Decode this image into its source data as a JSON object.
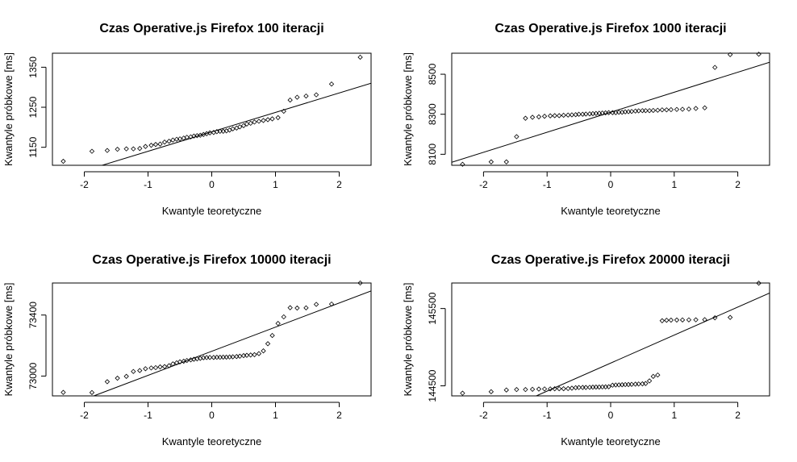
{
  "chart_data": [
    {
      "type": "scatter",
      "title": "Czas Operative.js Firefox  100 iteracji",
      "xlabel": "Kwantyle teoretyczne",
      "ylabel": "Kwantyle próbkowe [ms]",
      "xlim": [
        -2.5,
        2.5
      ],
      "ylim": [
        1105,
        1385
      ],
      "xticks": [
        -2,
        -1,
        0,
        1,
        2
      ],
      "yticks": [
        1150,
        1250,
        1350
      ],
      "grid": false,
      "points": {
        "x": [
          -2.33,
          -1.88,
          -1.64,
          -1.48,
          -1.34,
          -1.23,
          -1.13,
          -1.04,
          -0.95,
          -0.88,
          -0.81,
          -0.74,
          -0.67,
          -0.61,
          -0.55,
          -0.5,
          -0.44,
          -0.39,
          -0.33,
          -0.28,
          -0.23,
          -0.18,
          -0.13,
          -0.08,
          -0.03,
          0.03,
          0.08,
          0.13,
          0.18,
          0.23,
          0.28,
          0.33,
          0.39,
          0.44,
          0.5,
          0.55,
          0.61,
          0.67,
          0.74,
          0.81,
          0.88,
          0.95,
          1.04,
          1.13,
          1.23,
          1.34,
          1.48,
          1.64,
          1.88,
          2.33
        ],
        "y": [
          1115,
          1140,
          1142,
          1145,
          1146,
          1146,
          1147,
          1152,
          1155,
          1157,
          1158,
          1163,
          1165,
          1168,
          1170,
          1171,
          1173,
          1175,
          1176,
          1178,
          1179,
          1180,
          1182,
          1184,
          1186,
          1187,
          1189,
          1190,
          1190,
          1191,
          1193,
          1196,
          1198,
          1201,
          1204,
          1208,
          1210,
          1213,
          1215,
          1217,
          1219,
          1221,
          1224,
          1240,
          1268,
          1275,
          1278,
          1281,
          1308,
          1375
        ]
      },
      "qqline": {
        "x": [
          -1.72,
          2.5
        ],
        "y": [
          1105,
          1310
        ]
      }
    },
    {
      "type": "scatter",
      "title": "Czas Operative.js Firefox  1000 iteracji",
      "xlabel": "Kwantyle teoretyczne",
      "ylabel": "Kwantyle próbkowe [ms]",
      "xlim": [
        -2.5,
        2.5
      ],
      "ylim": [
        8045,
        8605
      ],
      "xticks": [
        -2,
        -1,
        0,
        1,
        2
      ],
      "yticks": [
        8100,
        8300,
        8500
      ],
      "grid": false,
      "points": {
        "x": [
          -2.33,
          -1.88,
          -1.64,
          -1.48,
          -1.34,
          -1.23,
          -1.13,
          -1.04,
          -0.95,
          -0.88,
          -0.81,
          -0.74,
          -0.67,
          -0.61,
          -0.55,
          -0.5,
          -0.44,
          -0.39,
          -0.33,
          -0.28,
          -0.23,
          -0.18,
          -0.13,
          -0.08,
          -0.03,
          0.03,
          0.08,
          0.13,
          0.18,
          0.23,
          0.28,
          0.33,
          0.39,
          0.44,
          0.5,
          0.55,
          0.61,
          0.67,
          0.74,
          0.81,
          0.88,
          0.95,
          1.04,
          1.13,
          1.23,
          1.34,
          1.48,
          1.64,
          1.88,
          2.33
        ],
        "y": [
          8050,
          8062,
          8062,
          8188,
          8280,
          8285,
          8287,
          8290,
          8292,
          8293,
          8293,
          8295,
          8296,
          8297,
          8298,
          8300,
          8300,
          8301,
          8302,
          8303,
          8304,
          8305,
          8306,
          8307,
          8308,
          8308,
          8308,
          8310,
          8310,
          8312,
          8313,
          8314,
          8316,
          8317,
          8318,
          8318,
          8318,
          8319,
          8320,
          8322,
          8322,
          8323,
          8324,
          8325,
          8326,
          8329,
          8332,
          8534,
          8598,
          8600
        ],
        "size": 50
      },
      "qqline": {
        "x": [
          -2.5,
          2.5
        ],
        "y": [
          8060,
          8560
        ]
      }
    },
    {
      "type": "scatter",
      "title": "Czas Operative.js Firefox  10000 iteracji",
      "xlabel": "Kwantyle teoretyczne",
      "ylabel": "Kwantyle próbkowe [ms]",
      "xlim": [
        -2.5,
        2.5
      ],
      "ylim": [
        2870,
        3610
      ],
      "xticks": [
        -2,
        -1,
        0,
        1,
        2
      ],
      "yticks": [
        73000,
        73400
      ],
      "ytick_offset": 70000,
      "grid": false,
      "points": {
        "x": [
          -2.33,
          -1.88,
          -1.64,
          -1.48,
          -1.34,
          -1.23,
          -1.13,
          -1.04,
          -0.95,
          -0.88,
          -0.81,
          -0.74,
          -0.67,
          -0.61,
          -0.55,
          -0.5,
          -0.44,
          -0.39,
          -0.33,
          -0.28,
          -0.23,
          -0.18,
          -0.13,
          -0.08,
          -0.03,
          0.03,
          0.08,
          0.13,
          0.18,
          0.23,
          0.28,
          0.33,
          0.39,
          0.44,
          0.5,
          0.55,
          0.61,
          0.67,
          0.74,
          0.81,
          0.88,
          0.95,
          1.04,
          1.13,
          1.23,
          1.34,
          1.48,
          1.64,
          1.88,
          2.33
        ],
        "y": [
          2893,
          2892,
          2963,
          2986,
          2998,
          3030,
          3036,
          3048,
          3053,
          3055,
          3060,
          3062,
          3068,
          3080,
          3087,
          3093,
          3097,
          3102,
          3106,
          3110,
          3113,
          3116,
          3120,
          3121,
          3122,
          3122,
          3123,
          3123,
          3124,
          3124,
          3125,
          3126,
          3128,
          3130,
          3134,
          3136,
          3138,
          3140,
          3147,
          3165,
          3212,
          3266,
          3345,
          3388,
          3448,
          3446,
          3447,
          3470,
          3472,
          3610
        ]
      },
      "qqline": {
        "x": [
          -1.85,
          2.5
        ],
        "y": [
          2870,
          3558
        ]
      }
    },
    {
      "type": "scatter",
      "title": "Czas Operative.js Firefox  20000 iteracji",
      "xlabel": "Kwantyle teoretyczne",
      "ylabel": "Kwantyle próbkowe [ms]",
      "xlim": [
        -2.5,
        2.5
      ],
      "ylim": [
        144370,
        145830
      ],
      "xticks": [
        -2,
        -1,
        0,
        1,
        2
      ],
      "yticks": [
        144500,
        145500
      ],
      "grid": false,
      "points": {
        "x": [
          -2.33,
          -1.88,
          -1.64,
          -1.48,
          -1.34,
          -1.23,
          -1.13,
          -1.04,
          -0.95,
          -0.88,
          -0.81,
          -0.74,
          -0.67,
          -0.61,
          -0.55,
          -0.5,
          -0.44,
          -0.39,
          -0.33,
          -0.28,
          -0.23,
          -0.18,
          -0.13,
          -0.08,
          -0.03,
          0.03,
          0.08,
          0.13,
          0.18,
          0.23,
          0.28,
          0.33,
          0.39,
          0.44,
          0.5,
          0.55,
          0.61,
          0.67,
          0.74,
          0.81,
          0.88,
          0.95,
          1.04,
          1.13,
          1.23,
          1.34,
          1.48,
          1.64,
          1.88,
          2.33
        ],
        "y": [
          144405,
          144424,
          144446,
          144452,
          144452,
          144455,
          144458,
          144460,
          144460,
          144462,
          144463,
          144463,
          144465,
          144470,
          144476,
          144478,
          144479,
          144479,
          144481,
          144483,
          144484,
          144484,
          144486,
          144487,
          144488,
          144508,
          144511,
          144512,
          144514,
          144516,
          144517,
          144519,
          144522,
          144524,
          144526,
          144530,
          144564,
          144622,
          144640,
          145342,
          145348,
          145350,
          145351,
          145352,
          145353,
          145354,
          145356,
          145380,
          145385,
          145828
        ]
      },
      "qqline": {
        "x": [
          -1.17,
          2.5
        ],
        "y": [
          144370,
          145700
        ]
      }
    }
  ]
}
